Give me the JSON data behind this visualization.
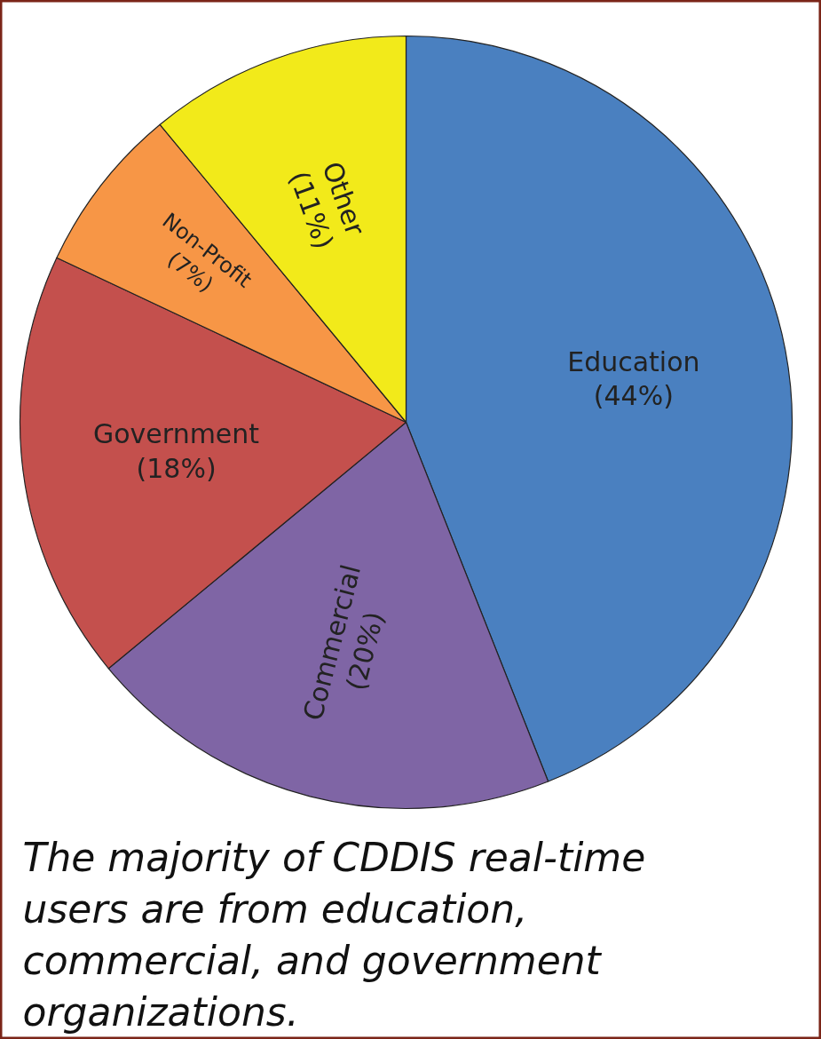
{
  "chart_data": {
    "type": "pie",
    "categories": [
      "Education",
      "Commercial",
      "Government",
      "Non-Profit",
      "Other"
    ],
    "values": [
      44,
      20,
      18,
      7,
      11
    ],
    "colors": [
      "#4a80c0",
      "#7f65a5",
      "#c4504d",
      "#f79646",
      "#f2ea1a"
    ],
    "value_labels": [
      "(44%)",
      "(20%)",
      "(18%)",
      "(7%)",
      "(11%)"
    ],
    "annotations": [
      "The majority of CDDIS real-time users are from education, commercial, and government organizations."
    ]
  }
}
